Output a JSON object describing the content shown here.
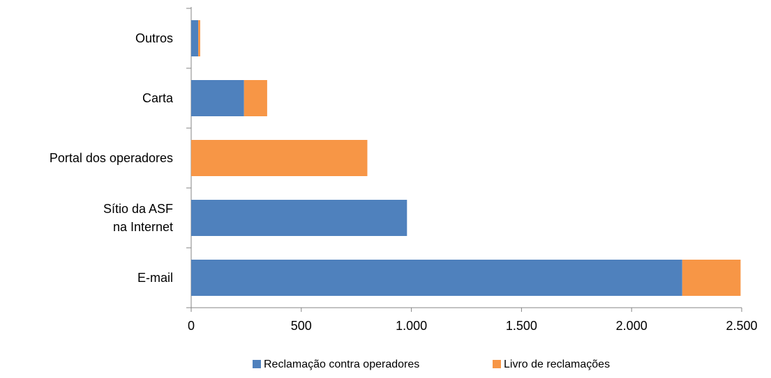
{
  "chart_data": {
    "type": "stacked_barh",
    "categories": [
      "Outros",
      "Carta",
      "Portal dos operadores",
      "Sítio da ASF\nna Internet",
      "E-mail"
    ],
    "series": [
      {
        "name": "Reclamação contra operadores",
        "color": "#4f81bd",
        "values": [
          32,
          240,
          0,
          980,
          2230
        ]
      },
      {
        "name": "Livro de reclamações",
        "color": "#f79646",
        "values": [
          9,
          105,
          800,
          0,
          265
        ]
      }
    ],
    "xlim": [
      0,
      2500
    ],
    "xticks": [
      0,
      500,
      {
        "value": 1000,
        "label": "1.000"
      },
      {
        "value": 1500,
        "label": "1.500"
      },
      {
        "value": 2000,
        "label": "2.000"
      },
      {
        "value": 2500,
        "label": "2.500"
      }
    ],
    "legend": "bottom"
  }
}
